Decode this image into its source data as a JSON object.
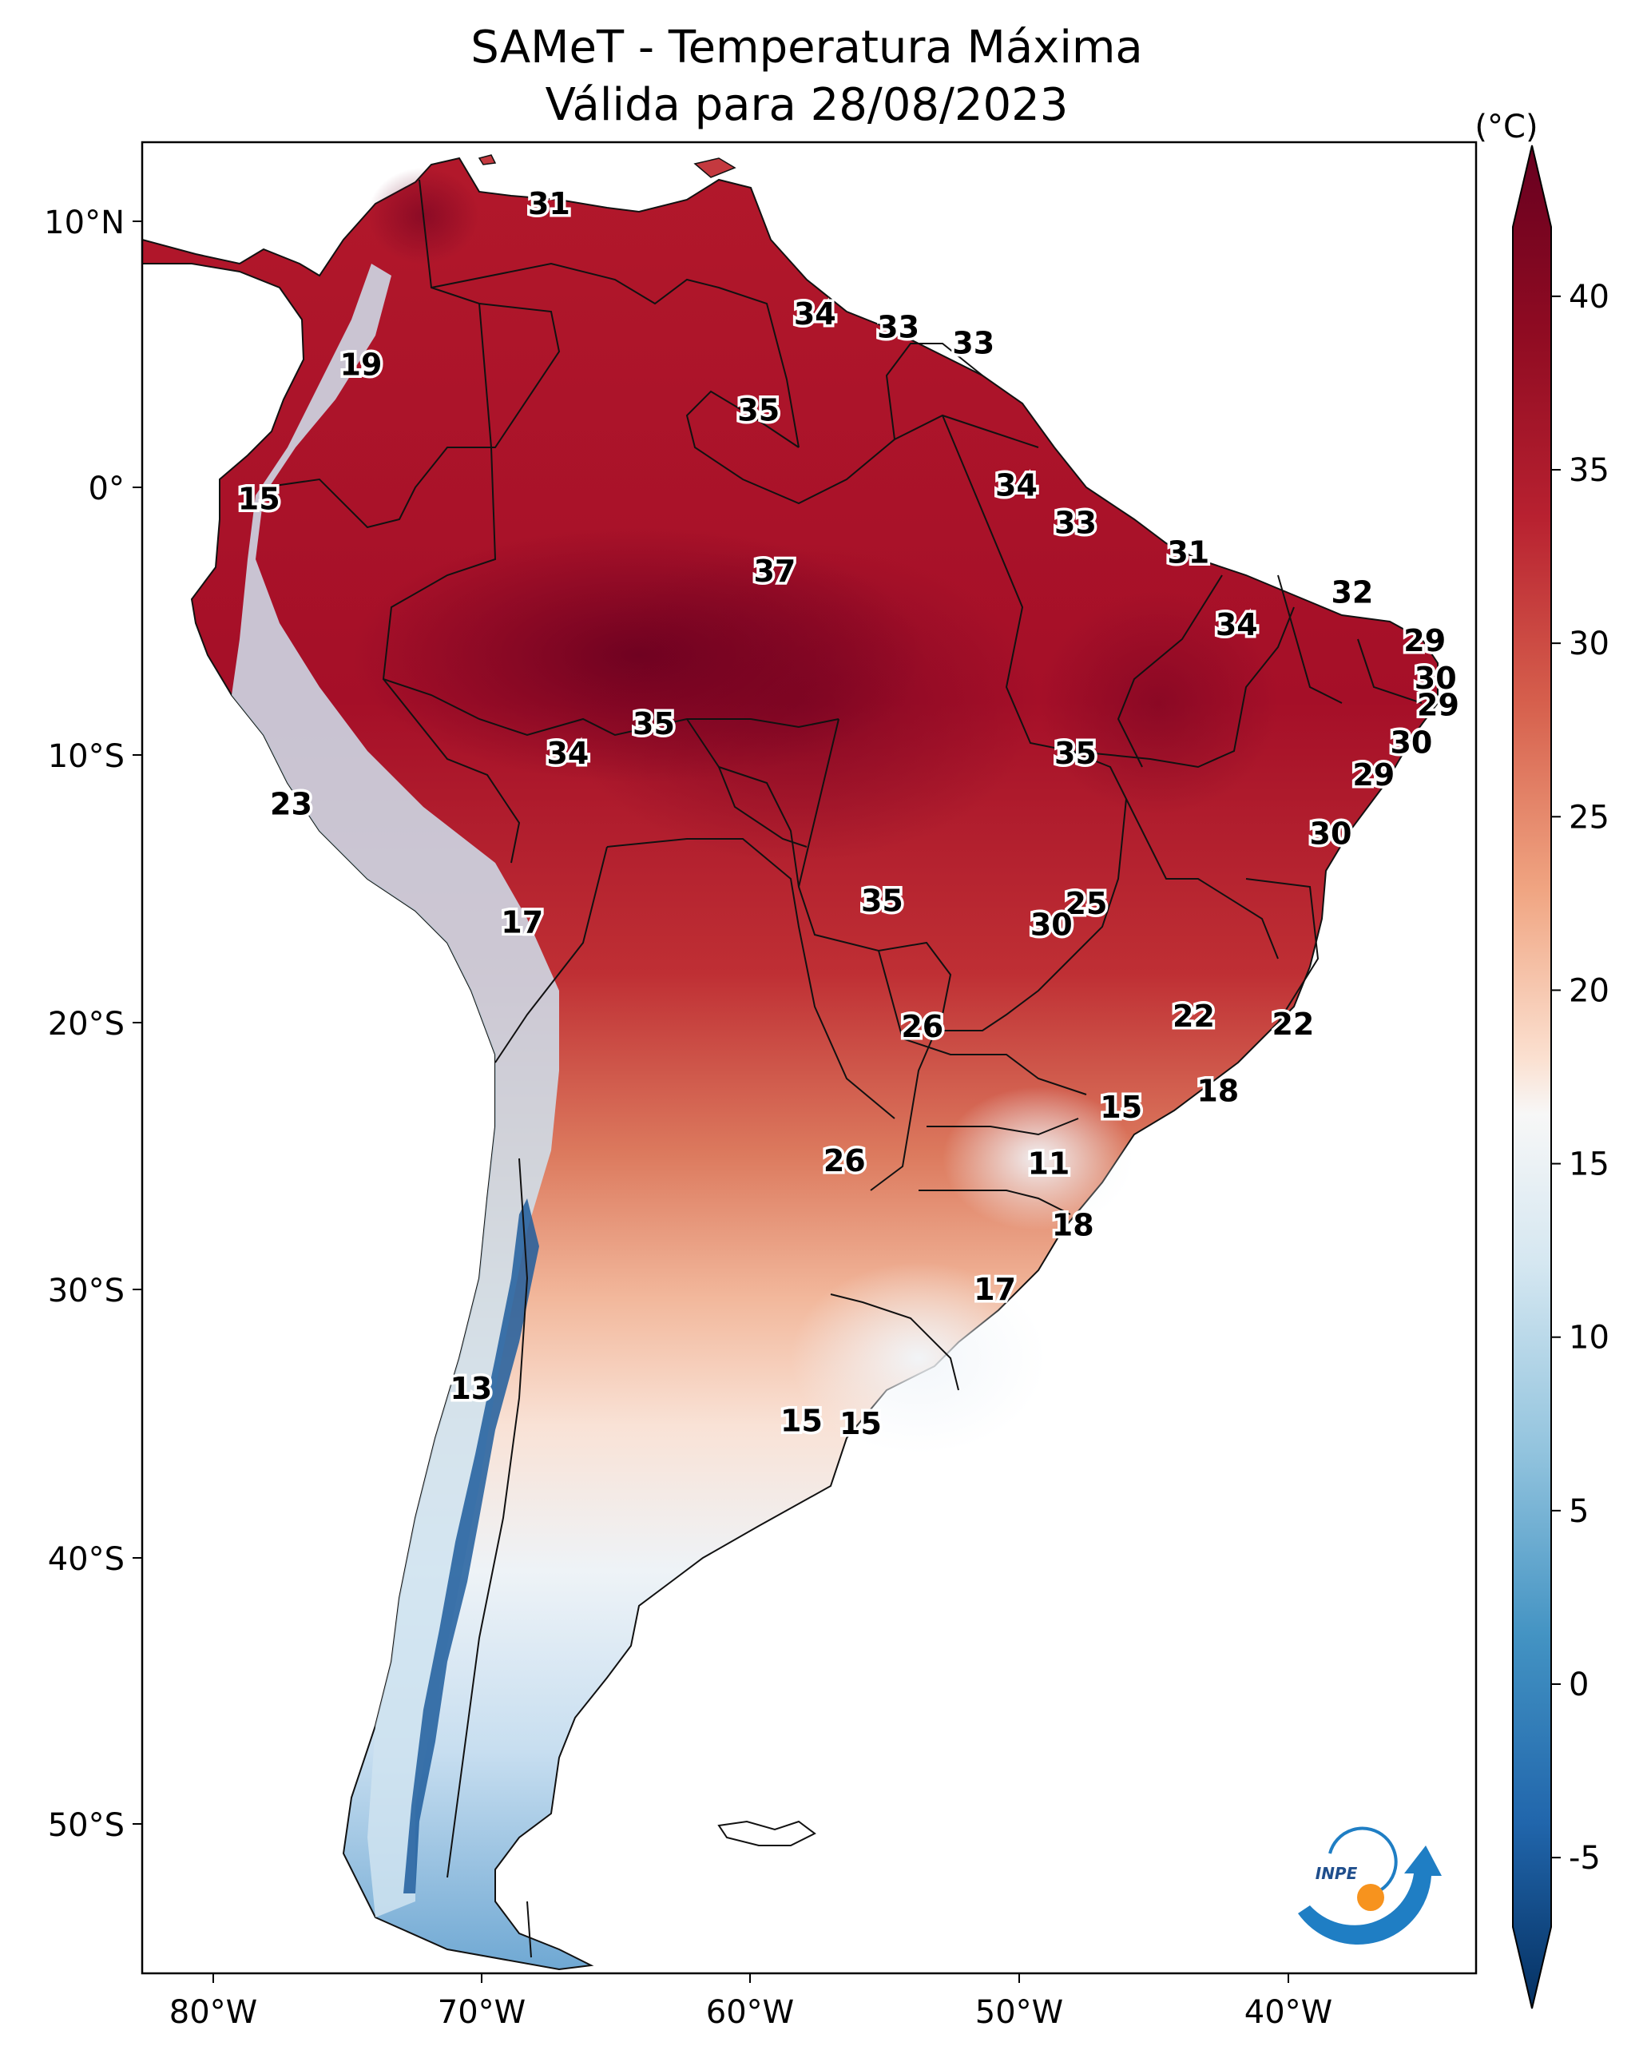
{
  "title": {
    "line1": "SAMeT - Temperatura Máxima",
    "line2": "Válida para 28/08/2023"
  },
  "axes": {
    "lon_ticks": [
      "80°W",
      "70°W",
      "60°W",
      "50°W",
      "40°W"
    ],
    "lat_ticks": [
      "10°N",
      "0°",
      "10°S",
      "20°S",
      "30°S",
      "40°S",
      "50°S"
    ]
  },
  "colorbar": {
    "unit": "(°C)",
    "ticks": [
      "40",
      "35",
      "30",
      "25",
      "20",
      "15",
      "10",
      "5",
      "0",
      "-5"
    ],
    "min": -7,
    "max": 42,
    "colors": {
      "cold": "#0a2f63",
      "cool": "#3f8ac4",
      "white": "#f7f7f7",
      "warm": "#e8a07e",
      "hot": "#b1202c",
      "extreme": "#67001f"
    }
  },
  "logo": {
    "text": "INPE"
  },
  "temperature_labels": [
    {
      "value": "31",
      "lon": -67.5,
      "lat": 10.5
    },
    {
      "value": "19",
      "lon": -74.5,
      "lat": 4.5
    },
    {
      "value": "34",
      "lon": -57.6,
      "lat": 6.4
    },
    {
      "value": "33",
      "lon": -54.5,
      "lat": 5.9
    },
    {
      "value": "33",
      "lon": -51.7,
      "lat": 5.3
    },
    {
      "value": "35",
      "lon": -59.7,
      "lat": 2.8
    },
    {
      "value": "15",
      "lon": -78.3,
      "lat": -0.5
    },
    {
      "value": "34",
      "lon": -50.1,
      "lat": 0.0
    },
    {
      "value": "33",
      "lon": -47.9,
      "lat": -1.4
    },
    {
      "value": "31",
      "lon": -43.7,
      "lat": -2.5
    },
    {
      "value": "37",
      "lon": -59.1,
      "lat": -3.2
    },
    {
      "value": "32",
      "lon": -37.6,
      "lat": -4.0
    },
    {
      "value": "34",
      "lon": -41.9,
      "lat": -5.2
    },
    {
      "value": "29",
      "lon": -34.9,
      "lat": -5.8
    },
    {
      "value": "30",
      "lon": -34.5,
      "lat": -7.2
    },
    {
      "value": "29",
      "lon": -34.4,
      "lat": -8.2
    },
    {
      "value": "35",
      "lon": -63.6,
      "lat": -8.9
    },
    {
      "value": "34",
      "lon": -66.8,
      "lat": -10.0
    },
    {
      "value": "35",
      "lon": -47.9,
      "lat": -10.0
    },
    {
      "value": "30",
      "lon": -35.4,
      "lat": -9.6
    },
    {
      "value": "29",
      "lon": -36.8,
      "lat": -10.8
    },
    {
      "value": "23",
      "lon": -77.1,
      "lat": -11.9
    },
    {
      "value": "30",
      "lon": -38.4,
      "lat": -13.0
    },
    {
      "value": "25",
      "lon": -47.5,
      "lat": -15.6
    },
    {
      "value": "35",
      "lon": -55.1,
      "lat": -15.5
    },
    {
      "value": "30",
      "lon": -48.8,
      "lat": -16.4
    },
    {
      "value": "17",
      "lon": -68.5,
      "lat": -16.3
    },
    {
      "value": "22",
      "lon": -43.5,
      "lat": -19.8
    },
    {
      "value": "22",
      "lon": -39.8,
      "lat": -20.1
    },
    {
      "value": "26",
      "lon": -53.6,
      "lat": -20.2
    },
    {
      "value": "18",
      "lon": -42.6,
      "lat": -22.6
    },
    {
      "value": "15",
      "lon": -46.2,
      "lat": -23.2
    },
    {
      "value": "26",
      "lon": -56.5,
      "lat": -25.2
    },
    {
      "value": "11",
      "lon": -48.9,
      "lat": -25.3
    },
    {
      "value": "18",
      "lon": -48.0,
      "lat": -27.6
    },
    {
      "value": "17",
      "lon": -50.9,
      "lat": -30.0
    },
    {
      "value": "13",
      "lon": -70.4,
      "lat": -33.7
    },
    {
      "value": "15",
      "lon": -58.1,
      "lat": -34.9
    },
    {
      "value": "15",
      "lon": -55.9,
      "lat": -35.0
    }
  ]
}
